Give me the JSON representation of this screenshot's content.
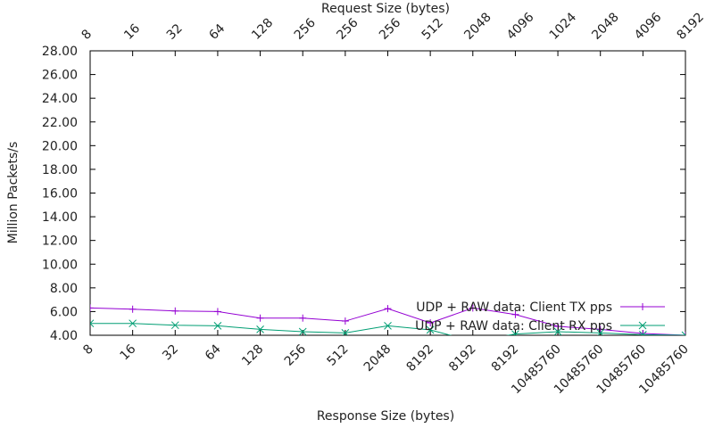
{
  "chart_data": {
    "type": "line",
    "xlabel": "Response Size (bytes)",
    "x2label": "Request Size (bytes)",
    "ylabel": "Million Packets/s",
    "ylim": [
      4,
      28
    ],
    "yticks": [
      "4.00",
      "6.00",
      "8.00",
      "10.00",
      "12.00",
      "14.00",
      "16.00",
      "18.00",
      "20.00",
      "22.00",
      "24.00",
      "26.00",
      "28.00"
    ],
    "bottom_ticks": [
      "8",
      "16",
      "32",
      "64",
      "128",
      "256",
      "512",
      "2048",
      "8192",
      "8192",
      "8192",
      "10485760",
      "10485760",
      "10485760",
      "10485760"
    ],
    "top_ticks": [
      "8",
      "16",
      "32",
      "64",
      "128",
      "256",
      "256",
      "256",
      "512",
      "2048",
      "4096",
      "1024",
      "2048",
      "4096",
      "8192"
    ],
    "legend_position": "bottom-right",
    "series": [
      {
        "name": "UDP + RAW data: Client TX pps",
        "color": "#9400d3",
        "marker": "plus",
        "values": [
          6.3,
          6.2,
          6.05,
          6.0,
          5.45,
          5.45,
          5.2,
          6.25,
          5.05,
          6.3,
          5.75,
          4.75,
          4.5,
          4.15,
          4.0
        ]
      },
      {
        "name": "UDP + RAW data: Client RX pps",
        "color": "#009e73",
        "marker": "x",
        "values": [
          5.0,
          5.0,
          4.85,
          4.8,
          4.5,
          4.3,
          4.2,
          4.8,
          4.45,
          3.5,
          4.1,
          4.3,
          4.2,
          4.05,
          4.0
        ]
      }
    ]
  }
}
